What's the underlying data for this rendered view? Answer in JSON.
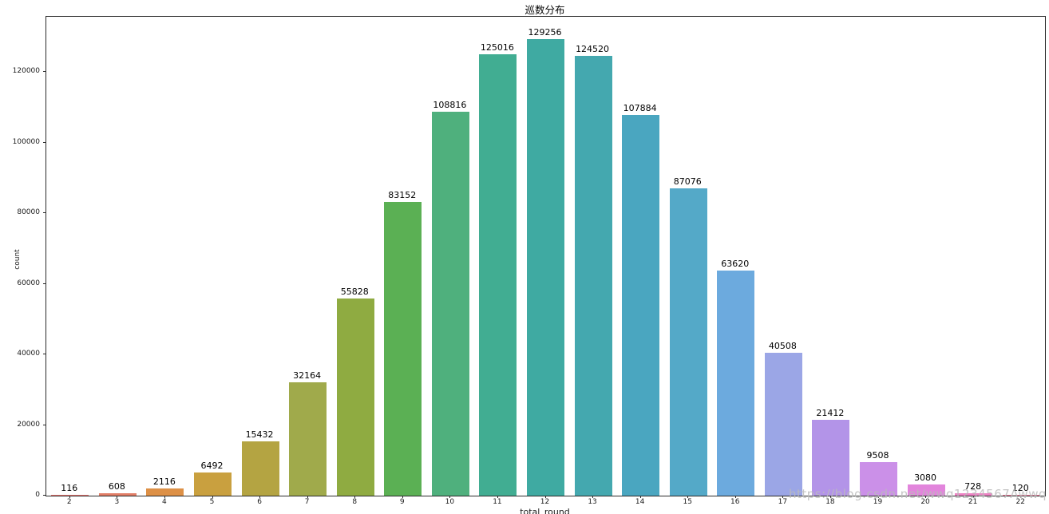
{
  "chart_data": {
    "type": "bar",
    "title": "巡数分布",
    "xlabel": "total_round",
    "ylabel": "count",
    "categories": [
      2,
      3,
      4,
      5,
      6,
      7,
      8,
      9,
      10,
      11,
      12,
      13,
      14,
      15,
      16,
      17,
      18,
      19,
      20,
      21,
      22
    ],
    "values": [
      116,
      608,
      2116,
      6492,
      15432,
      32164,
      55828,
      83152,
      108816,
      125016,
      129256,
      124520,
      107884,
      87076,
      63620,
      40508,
      21412,
      9508,
      3080,
      728,
      120
    ],
    "bar_labels": [
      "116",
      "608",
      "2116",
      "6492",
      "15432",
      "32164",
      "55828",
      "83152",
      "108816",
      "125016",
      "129256",
      "124520",
      "107884",
      "87076",
      "63620",
      "40508",
      "21412",
      "9508",
      "3080",
      "728",
      "120"
    ],
    "bar_colors": [
      "#e5736f",
      "#e27e67",
      "#dd9046",
      "#c9a03f",
      "#b4a442",
      "#a0aa4b",
      "#8fab41",
      "#5bb054",
      "#4fb07d",
      "#41ad92",
      "#3faaa2",
      "#44a8af",
      "#4aa6c0",
      "#54a9c8",
      "#6caade",
      "#9ba6e6",
      "#b394e8",
      "#cb90e8",
      "#e285dc",
      "#ee82c4",
      "#f07d9d"
    ],
    "yticks": [
      0,
      20000,
      40000,
      60000,
      80000,
      100000,
      120000
    ],
    "ylim": [
      0,
      135600
    ],
    "grid": false,
    "legend": "none",
    "bar_value_labels_shown": true
  },
  "watermark": {
    "text": "https://blog.csdn.net/wwq1234567Awwq",
    "color": "#bbbbbb"
  }
}
